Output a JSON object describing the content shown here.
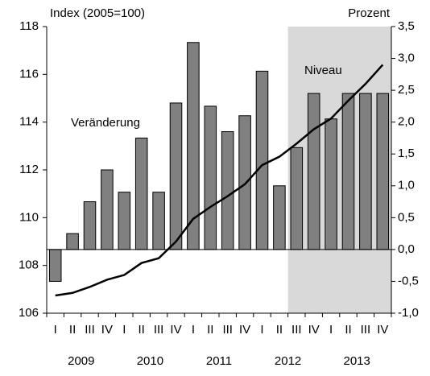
{
  "chart_data": {
    "type": "bar_line",
    "annotations": {
      "left_axis": "Index (2005=100)",
      "right_axis": "Prozent",
      "line_label": "Niveau",
      "bar_label": "Veränderung"
    },
    "categories": [
      "I",
      "II",
      "III",
      "IV",
      "I",
      "II",
      "III",
      "IV",
      "I",
      "II",
      "III",
      "IV",
      "I",
      "II",
      "III",
      "IV",
      "I",
      "II",
      "III",
      "IV"
    ],
    "years": [
      "2009",
      "2010",
      "2011",
      "2012",
      "2013"
    ],
    "series": [
      {
        "name": "Veränderung",
        "type": "bar",
        "axis": "y2",
        "color": "#808080",
        "values": [
          -0.5,
          0.25,
          0.75,
          1.25,
          0.9,
          1.75,
          0.9,
          2.3,
          3.25,
          2.25,
          1.85,
          2.1,
          2.8,
          1.0,
          1.6,
          2.45,
          2.05,
          2.45,
          2.45,
          2.45
        ]
      },
      {
        "name": "Niveau",
        "type": "line",
        "axis": "y",
        "color": "#000000",
        "values": [
          106.74,
          106.85,
          107.1,
          107.4,
          107.6,
          108.1,
          108.3,
          109.0,
          109.95,
          110.45,
          110.9,
          111.4,
          112.2,
          112.55,
          113.1,
          113.7,
          114.15,
          114.9,
          115.6,
          116.4
        ]
      }
    ],
    "ylim": [
      106,
      118
    ],
    "yticks": [
      106,
      108,
      110,
      112,
      114,
      116,
      118
    ],
    "y2lim": [
      -1.0,
      3.5
    ],
    "y2ticks": [
      {
        "value": -1.0,
        "label": "-1,0"
      },
      {
        "value": -0.5,
        "label": "-0,5"
      },
      {
        "value": 0,
        "label": "0,0"
      },
      {
        "value": 0.5,
        "label": "0,5"
      },
      {
        "value": 1.0,
        "label": "1,0"
      },
      {
        "value": 1.5,
        "label": "1,5"
      },
      {
        "value": 2.0,
        "label": "2,0"
      },
      {
        "value": 2.5,
        "label": "2,5"
      },
      {
        "value": 3.0,
        "label": "3,0"
      },
      {
        "value": 3.5,
        "label": "3,5"
      }
    ]
  }
}
